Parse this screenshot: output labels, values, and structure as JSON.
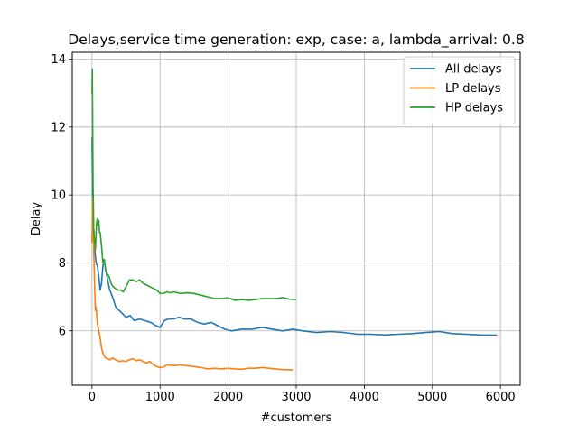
{
  "chart_data": {
    "type": "line",
    "title": "Delays,service time generation: exp, case: a, lambda_arrival: 0.8",
    "xlabel": "#customers",
    "ylabel": "Delay",
    "xlim": [
      -290,
      6290
    ],
    "ylim": [
      4.4,
      14.2
    ],
    "xticks": [
      0,
      1000,
      2000,
      3000,
      4000,
      5000,
      6000
    ],
    "yticks": [
      6,
      8,
      10,
      12,
      14
    ],
    "grid": true,
    "legend_position": "top-right",
    "series": [
      {
        "name": "All delays",
        "color": "#1f77b4",
        "x": [
          0,
          10,
          20,
          30,
          40,
          50,
          60,
          80,
          100,
          120,
          140,
          160,
          180,
          200,
          230,
          260,
          300,
          350,
          400,
          450,
          500,
          560,
          620,
          700,
          780,
          860,
          940,
          1000,
          1060,
          1120,
          1200,
          1280,
          1360,
          1450,
          1550,
          1650,
          1750,
          1850,
          1950,
          2050,
          2200,
          2350,
          2500,
          2650,
          2800,
          2950,
          3100,
          3300,
          3500,
          3700,
          3900,
          4100,
          4300,
          4500,
          4700,
          4900,
          5100,
          5300,
          5500,
          5700,
          5950
        ],
        "y": [
          11.7,
          10.0,
          9.2,
          8.8,
          8.4,
          8.2,
          8.0,
          7.9,
          7.6,
          7.2,
          7.4,
          7.9,
          8.1,
          7.8,
          7.5,
          7.2,
          7.0,
          6.7,
          6.6,
          6.5,
          6.4,
          6.45,
          6.3,
          6.35,
          6.3,
          6.25,
          6.15,
          6.1,
          6.3,
          6.35,
          6.35,
          6.4,
          6.35,
          6.35,
          6.25,
          6.2,
          6.25,
          6.15,
          6.05,
          6.0,
          6.05,
          6.05,
          6.1,
          6.05,
          6.0,
          6.05,
          6.0,
          5.95,
          5.98,
          5.95,
          5.9,
          5.9,
          5.88,
          5.9,
          5.92,
          5.95,
          5.98,
          5.92,
          5.9,
          5.88,
          5.87
        ]
      },
      {
        "name": "LP delays",
        "color": "#ff7f0e",
        "x": [
          0,
          10,
          20,
          30,
          40,
          50,
          60,
          80,
          100,
          120,
          140,
          160,
          180,
          200,
          230,
          260,
          300,
          350,
          400,
          450,
          500,
          550,
          600,
          650,
          700,
          750,
          800,
          850,
          900,
          950,
          1000,
          1050,
          1100,
          1200,
          1300,
          1400,
          1500,
          1600,
          1700,
          1800,
          1900,
          2000,
          2100,
          2200,
          2300,
          2400,
          2500,
          2600,
          2700,
          2800,
          2950
        ],
        "y": [
          8.6,
          9.9,
          8.8,
          8.0,
          7.2,
          6.6,
          6.7,
          6.2,
          6.0,
          5.8,
          5.5,
          5.35,
          5.25,
          5.2,
          5.18,
          5.15,
          5.2,
          5.15,
          5.1,
          5.12,
          5.1,
          5.15,
          5.18,
          5.12,
          5.15,
          5.1,
          5.05,
          5.1,
          5.0,
          4.95,
          4.92,
          4.93,
          5.0,
          4.98,
          5.0,
          4.97,
          4.95,
          4.92,
          4.88,
          4.9,
          4.88,
          4.9,
          4.88,
          4.87,
          4.9,
          4.9,
          4.92,
          4.9,
          4.88,
          4.86,
          4.85
        ]
      },
      {
        "name": "HP delays",
        "color": "#2ca02c",
        "x": [
          0,
          5,
          10,
          15,
          20,
          25,
          30,
          40,
          50,
          60,
          70,
          80,
          90,
          100,
          110,
          120,
          140,
          160,
          180,
          200,
          220,
          250,
          280,
          310,
          340,
          380,
          420,
          460,
          500,
          550,
          600,
          650,
          700,
          750,
          800,
          850,
          900,
          950,
          1000,
          1050,
          1100,
          1150,
          1200,
          1300,
          1400,
          1500,
          1600,
          1700,
          1800,
          1900,
          2000,
          2100,
          2200,
          2300,
          2400,
          2500,
          2600,
          2700,
          2800,
          2900,
          3000
        ],
        "y": [
          13.0,
          13.7,
          12.0,
          10.3,
          9.7,
          9.0,
          8.8,
          8.6,
          8.4,
          8.9,
          9.2,
          9.3,
          9.1,
          9.25,
          8.9,
          8.9,
          8.5,
          8.0,
          8.1,
          7.8,
          7.7,
          7.6,
          7.4,
          7.3,
          7.25,
          7.2,
          7.2,
          7.15,
          7.3,
          7.5,
          7.5,
          7.45,
          7.5,
          7.4,
          7.35,
          7.3,
          7.25,
          7.2,
          7.1,
          7.1,
          7.15,
          7.12,
          7.15,
          7.1,
          7.12,
          7.1,
          7.05,
          7.0,
          6.95,
          6.95,
          6.97,
          6.9,
          6.92,
          6.9,
          6.92,
          6.95,
          6.95,
          6.95,
          6.98,
          6.93,
          6.92
        ]
      }
    ]
  }
}
